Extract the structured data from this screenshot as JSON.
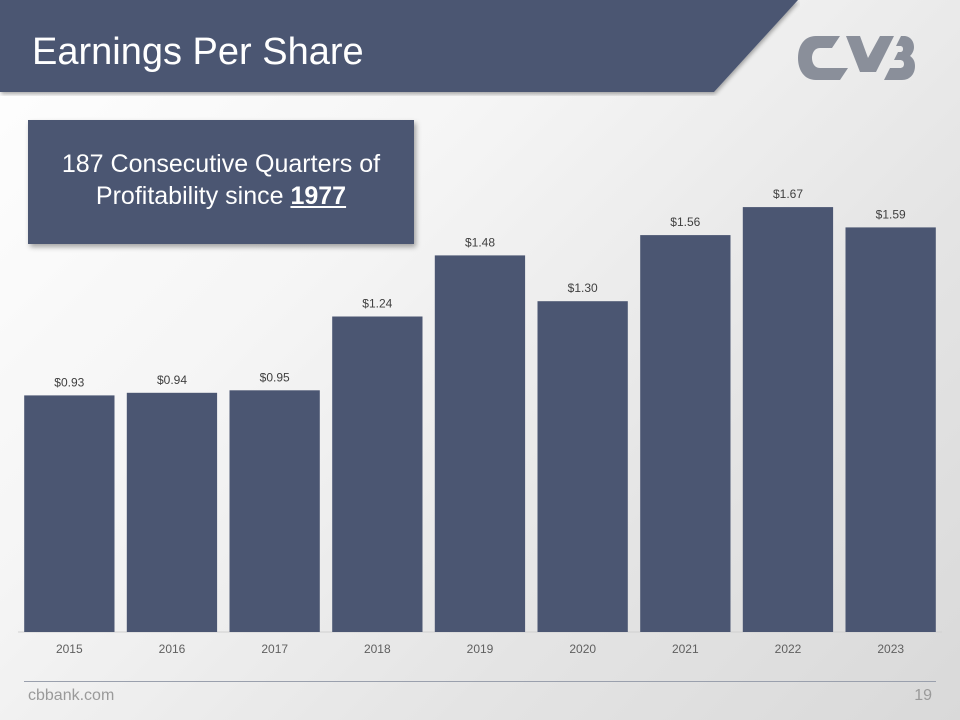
{
  "slide": {
    "title": "Earnings Per Share",
    "callout": {
      "line1": "187 Consecutive Quarters of",
      "line2_prefix": "Profitability since ",
      "year": "1977"
    },
    "footer": {
      "site": "cbbank.com",
      "page_number": "19"
    }
  },
  "logo": {
    "name": "cvb-logo-icon"
  },
  "colors": {
    "banner": "#4b5672",
    "bar": "#4b5672",
    "logo": "#8a8f9a",
    "label": "#404040",
    "tick": "#606060"
  },
  "chart_data": {
    "type": "bar",
    "title": "Earnings Per Share",
    "xlabel": "",
    "ylabel": "",
    "categories": [
      "2015",
      "2016",
      "2017",
      "2018",
      "2019",
      "2020",
      "2021",
      "2022",
      "2023"
    ],
    "values": [
      0.93,
      0.94,
      0.95,
      1.24,
      1.48,
      1.3,
      1.56,
      1.67,
      1.59
    ],
    "data_labels": [
      "$0.93",
      "$0.94",
      "$0.95",
      "$1.24",
      "$1.48",
      "$1.30",
      "$1.56",
      "$1.67",
      "$1.59"
    ],
    "ylim": [
      0,
      1.8
    ],
    "grid": false,
    "legend": "none"
  }
}
